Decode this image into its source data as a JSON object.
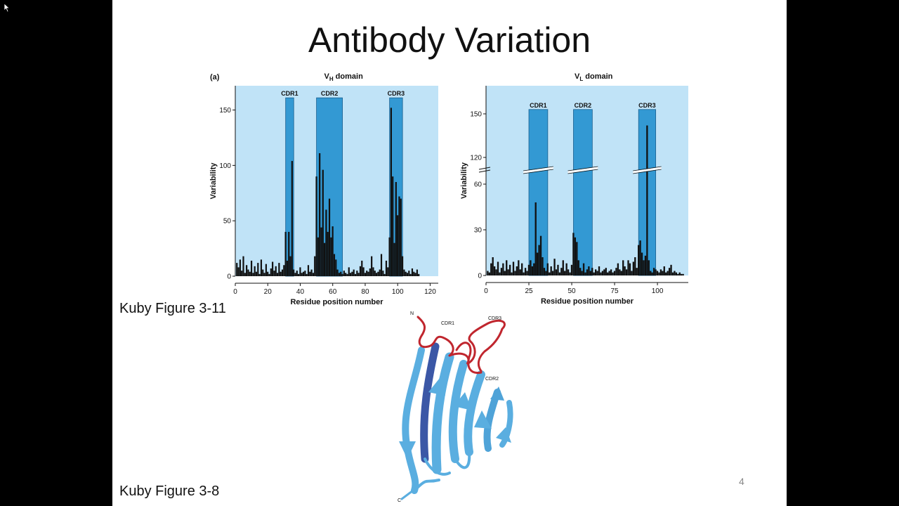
{
  "slide": {
    "title": "Antibody Variation",
    "caption_top": "Kuby Figure 3-11",
    "caption_bottom": "Kuby Figure 3-8",
    "page_number": "4",
    "panel_label": "(a)"
  },
  "colors": {
    "plot_bg": "#c0e3f7",
    "cdr_box": "#3399d3",
    "bars": "#111111",
    "loop": "#c0262e",
    "strand_light": "#5aaee0",
    "strand_dark": "#3b57a6"
  },
  "chart_data": [
    {
      "type": "bar",
      "title_main": "V",
      "title_sub": "H",
      "title_rest": " domain",
      "xlabel": "Residue position number",
      "ylabel": "Variability",
      "xlim": [
        0,
        125
      ],
      "ylim": [
        0,
        170
      ],
      "xticks": [
        0,
        20,
        40,
        60,
        80,
        100,
        120
      ],
      "yticks": [
        0,
        50,
        100,
        150
      ],
      "cdr_regions": [
        {
          "name": "CDR1",
          "start": 31,
          "end": 35
        },
        {
          "name": "CDR2",
          "start": 50,
          "end": 65
        },
        {
          "name": "CDR3",
          "start": 95,
          "end": 102
        }
      ],
      "cdr_top": 161,
      "x": [
        1,
        2,
        3,
        4,
        5,
        6,
        7,
        8,
        9,
        10,
        11,
        12,
        13,
        14,
        15,
        16,
        17,
        18,
        19,
        20,
        21,
        22,
        23,
        24,
        25,
        26,
        27,
        28,
        29,
        30,
        31,
        32,
        33,
        34,
        35,
        36,
        37,
        38,
        39,
        40,
        41,
        42,
        43,
        44,
        45,
        46,
        47,
        48,
        49,
        50,
        51,
        52,
        53,
        54,
        55,
        56,
        57,
        58,
        59,
        60,
        61,
        62,
        63,
        64,
        65,
        66,
        67,
        68,
        69,
        70,
        71,
        72,
        73,
        74,
        75,
        76,
        77,
        78,
        79,
        80,
        81,
        82,
        83,
        84,
        85,
        86,
        87,
        88,
        89,
        90,
        91,
        92,
        93,
        94,
        95,
        96,
        97,
        98,
        99,
        100,
        101,
        102,
        103,
        104,
        105,
        106,
        107,
        108,
        109,
        110,
        111,
        112,
        113
      ],
      "values": [
        12,
        8,
        15,
        5,
        18,
        3,
        10,
        6,
        4,
        14,
        3,
        9,
        4,
        12,
        2,
        15,
        6,
        3,
        11,
        4,
        2,
        7,
        13,
        5,
        9,
        3,
        12,
        4,
        6,
        10,
        40,
        14,
        40,
        18,
        104,
        6,
        3,
        5,
        2,
        8,
        3,
        4,
        5,
        2,
        10,
        4,
        6,
        3,
        18,
        90,
        35,
        111,
        44,
        96,
        30,
        60,
        40,
        70,
        35,
        45,
        20,
        15,
        6,
        3,
        4,
        2,
        5,
        3,
        2,
        8,
        3,
        4,
        6,
        2,
        5,
        3,
        9,
        14,
        8,
        3,
        5,
        4,
        7,
        18,
        8,
        5,
        3,
        4,
        6,
        20,
        5,
        2,
        14,
        8,
        35,
        152,
        90,
        30,
        85,
        55,
        72,
        70,
        18,
        6,
        4,
        3,
        5,
        2,
        7,
        4,
        3,
        6,
        2
      ],
      "values_precision": "approximate, estimated from bar heights"
    },
    {
      "type": "bar",
      "title_main": "V",
      "title_sub": "L",
      "title_rest": " domain",
      "xlabel": "Residue position number",
      "ylabel": "Variability",
      "xlim": [
        0,
        118
      ],
      "ylim": [
        0,
        150
      ],
      "broken_axis": {
        "lower": [
          0,
          60
        ],
        "upper": [
          120,
          150
        ]
      },
      "xticks": [
        0,
        25,
        50,
        75,
        100
      ],
      "yticks": [
        0,
        30,
        60,
        120,
        150
      ],
      "cdr_regions": [
        {
          "name": "CDR1",
          "start": 25,
          "end": 35
        },
        {
          "name": "CDR2",
          "start": 51,
          "end": 61
        },
        {
          "name": "CDR3",
          "start": 89,
          "end": 98
        }
      ],
      "cdr_top": 153,
      "x": [
        1,
        2,
        3,
        4,
        5,
        6,
        7,
        8,
        9,
        10,
        11,
        12,
        13,
        14,
        15,
        16,
        17,
        18,
        19,
        20,
        21,
        22,
        23,
        24,
        25,
        26,
        27,
        28,
        29,
        30,
        31,
        32,
        33,
        34,
        35,
        36,
        37,
        38,
        39,
        40,
        41,
        42,
        43,
        44,
        45,
        46,
        47,
        48,
        49,
        50,
        51,
        52,
        53,
        54,
        55,
        56,
        57,
        58,
        59,
        60,
        61,
        62,
        63,
        64,
        65,
        66,
        67,
        68,
        69,
        70,
        71,
        72,
        73,
        74,
        75,
        76,
        77,
        78,
        79,
        80,
        81,
        82,
        83,
        84,
        85,
        86,
        87,
        88,
        89,
        90,
        91,
        92,
        93,
        94,
        95,
        96,
        97,
        98,
        99,
        100,
        101,
        102,
        103,
        104,
        105,
        106,
        107,
        108,
        109,
        110,
        111,
        112,
        113,
        114,
        115
      ],
      "values": [
        3,
        2,
        8,
        12,
        6,
        4,
        9,
        2,
        5,
        8,
        3,
        10,
        4,
        7,
        2,
        9,
        3,
        6,
        10,
        4,
        8,
        2,
        5,
        3,
        7,
        10,
        6,
        8,
        48,
        15,
        20,
        26,
        12,
        5,
        3,
        8,
        2,
        6,
        3,
        11,
        4,
        7,
        2,
        5,
        10,
        3,
        8,
        4,
        2,
        7,
        28,
        25,
        22,
        10,
        5,
        3,
        8,
        2,
        4,
        6,
        3,
        5,
        2,
        4,
        3,
        6,
        2,
        3,
        4,
        5,
        2,
        3,
        4,
        2,
        3,
        5,
        8,
        4,
        3,
        10,
        6,
        4,
        10,
        8,
        3,
        9,
        12,
        5,
        20,
        23,
        15,
        10,
        13,
        142,
        10,
        3,
        2,
        5,
        4,
        3,
        2,
        4,
        3,
        6,
        2,
        3,
        5,
        7,
        2,
        3,
        2,
        1,
        2,
        1,
        1
      ],
      "values_precision": "approximate, estimated from bar heights"
    }
  ],
  "ribbon": {
    "labels": {
      "n": "N",
      "c": "C",
      "cdr1": "CDR1",
      "cdr2": "CDR2",
      "cdr3": "CDR3"
    }
  }
}
